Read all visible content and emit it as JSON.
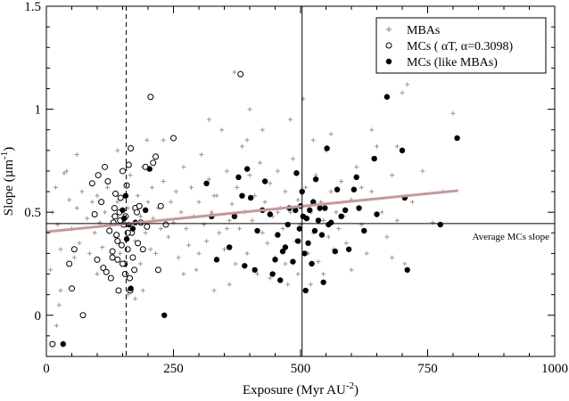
{
  "chart_data": {
    "type": "scatter",
    "xlabel": "Exposure (Myr AU",
    "xlabel_sup": "-2",
    "xlabel_end": ")",
    "ylabel": "Slope (µm",
    "ylabel_sup": "-1",
    "ylabel_end": ")",
    "xlim": [
      0,
      1000
    ],
    "ylim": [
      -0.2,
      1.5
    ],
    "xticks": [
      0,
      250,
      500,
      750,
      1000
    ],
    "xtick_labels": [
      "0",
      "250",
      "500",
      "750",
      "1000"
    ],
    "yticks": [
      0,
      0.5,
      1,
      1.5
    ],
    "ytick_labels": [
      "0",
      "0.5",
      "1",
      "1.5"
    ],
    "grid": false,
    "legend": {
      "placement": "top-right",
      "entries": [
        {
          "label": "MBAs",
          "marker": "plus",
          "color": "#b08a8a"
        },
        {
          "label": "MCs ( αT, α=0.3098)",
          "marker": "open-circle",
          "color": "#000000"
        },
        {
          "label": "MCs (like MBAs)",
          "marker": "filled-circle",
          "color": "#000000"
        }
      ]
    },
    "reference_lines": {
      "vertical_dashed_x": 157,
      "vertical_solid_x": 503,
      "horizontal_y": 0.445,
      "horizontal_label": "Average MCs slope",
      "trend_line": {
        "from": [
          0,
          0.405
        ],
        "to": [
          810,
          0.605
        ],
        "color": "#c49a9a"
      }
    },
    "series": [
      {
        "name": "MBAs",
        "marker": "plus",
        "color": "#b08a8a",
        "points": [
          [
            12,
            0.5
          ],
          [
            18,
            0.62
          ],
          [
            22,
            0.44
          ],
          [
            28,
            0.32
          ],
          [
            35,
            0.69
          ],
          [
            40,
            0.7
          ],
          [
            45,
            0.56
          ],
          [
            50,
            0.42
          ],
          [
            55,
            0.28
          ],
          [
            60,
            0.52
          ],
          [
            65,
            0.35
          ],
          [
            70,
            0.6
          ],
          [
            80,
            0.47
          ],
          [
            85,
            0.3
          ],
          [
            90,
            0.55
          ],
          [
            95,
            0.4
          ],
          [
            100,
            0.58
          ],
          [
            105,
            0.45
          ],
          [
            110,
            0.33
          ],
          [
            115,
            0.5
          ],
          [
            120,
            0.62
          ],
          [
            125,
            0.42
          ],
          [
            130,
            0.48
          ],
          [
            135,
            0.38
          ],
          [
            140,
            0.55
          ],
          [
            145,
            0.3
          ],
          [
            150,
            0.46
          ],
          [
            160,
            0.52
          ],
          [
            165,
            0.68
          ],
          [
            170,
            0.44
          ],
          [
            175,
            0.36
          ],
          [
            180,
            0.58
          ],
          [
            185,
            0.48
          ],
          [
            190,
            0.72
          ],
          [
            195,
            0.4
          ],
          [
            198,
            0.85
          ],
          [
            200,
            0.55
          ],
          [
            205,
            0.32
          ],
          [
            208,
            0.62
          ],
          [
            210,
            0.47
          ],
          [
            215,
            0.3
          ],
          [
            220,
            0.52
          ],
          [
            225,
            0.42
          ],
          [
            230,
            0.65
          ],
          [
            240,
            0.38
          ],
          [
            245,
            0.55
          ],
          [
            250,
            0.45
          ],
          [
            255,
            0.6
          ],
          [
            260,
            0.28
          ],
          [
            265,
            0.5
          ],
          [
            270,
            0.72
          ],
          [
            275,
            0.42
          ],
          [
            280,
            0.34
          ],
          [
            285,
            0.62
          ],
          [
            290,
            0.48
          ],
          [
            295,
            0.22
          ],
          [
            300,
            0.55
          ],
          [
            305,
            0.78
          ],
          [
            310,
            0.44
          ],
          [
            315,
            0.36
          ],
          [
            320,
            0.66
          ],
          [
            325,
            0.5
          ],
          [
            330,
            0.12
          ],
          [
            335,
            0.58
          ],
          [
            340,
            0.4
          ],
          [
            345,
            0.9
          ],
          [
            350,
            0.32
          ],
          [
            355,
            0.7
          ],
          [
            360,
            0.46
          ],
          [
            365,
            0.54
          ],
          [
            370,
            1.18
          ],
          [
            372,
            0.25
          ],
          [
            375,
            0.62
          ],
          [
            380,
            0.42
          ],
          [
            385,
            0.82
          ],
          [
            390,
            0.5
          ],
          [
            395,
            0.3
          ],
          [
            400,
            0.68
          ],
          [
            405,
            0.46
          ],
          [
            410,
            0.58
          ],
          [
            415,
            0.2
          ],
          [
            420,
            0.74
          ],
          [
            425,
            0.4
          ],
          [
            430,
            0.55
          ],
          [
            435,
            0.35
          ],
          [
            440,
            0.64
          ],
          [
            445,
            0.48
          ],
          [
            450,
            0.28
          ],
          [
            455,
            0.7
          ],
          [
            460,
            0.52
          ],
          [
            465,
            0.42
          ],
          [
            470,
            0.6
          ],
          [
            475,
            0.15
          ],
          [
            480,
            0.5
          ],
          [
            485,
            0.76
          ],
          [
            490,
            0.36
          ],
          [
            495,
            0.56
          ],
          [
            500,
            0.44
          ],
          [
            505,
            1.05
          ],
          [
            510,
            0.62
          ],
          [
            515,
            0.3
          ],
          [
            520,
            0.5
          ],
          [
            525,
            0.4
          ],
          [
            530,
            0.68
          ],
          [
            535,
            0.26
          ],
          [
            540,
            0.55
          ],
          [
            545,
            0.46
          ],
          [
            550,
            0.8
          ],
          [
            555,
            0.38
          ],
          [
            560,
            0.6
          ],
          [
            565,
            0.32
          ],
          [
            570,
            0.5
          ],
          [
            575,
            0.42
          ],
          [
            580,
            0.65
          ],
          [
            590,
            0.35
          ],
          [
            600,
            0.56
          ],
          [
            610,
            0.72
          ],
          [
            620,
            0.44
          ],
          [
            630,
            0.3
          ],
          [
            640,
            0.6
          ],
          [
            650,
            0.82
          ],
          [
            660,
            0.5
          ],
          [
            670,
            0.38
          ],
          [
            680,
            0.68
          ],
          [
            690,
            0.46
          ],
          [
            700,
            1.08
          ],
          [
            705,
            0.25
          ],
          [
            710,
            1.12
          ],
          [
            720,
            0.55
          ],
          [
            740,
            0.7
          ],
          [
            760,
            0.45
          ],
          [
            780,
            0.6
          ],
          [
            800,
            0.98
          ],
          [
            60,
            0.78
          ],
          [
            100,
            0.2
          ],
          [
            140,
            0.8
          ],
          [
            185,
            0.25
          ],
          [
            230,
            0.85
          ],
          [
            270,
            0.2
          ],
          [
            320,
            0.95
          ],
          [
            360,
            0.15
          ],
          [
            400,
            1.0
          ],
          [
            440,
            0.18
          ],
          [
            480,
            0.95
          ],
          [
            520,
            0.15
          ],
          [
            560,
            0.88
          ],
          [
            600,
            0.22
          ],
          [
            640,
            0.9
          ],
          [
            680,
            0.28
          ],
          [
            8,
            0.22
          ],
          [
            25,
            0.05
          ],
          [
            20,
            -0.05
          ],
          [
            28,
            0.12
          ],
          [
            160,
            0.1
          ],
          [
            175,
            0.08
          ],
          [
            190,
            0.12
          ],
          [
            300,
            0.3
          ],
          [
            330,
            0.58
          ],
          [
            355,
            0.42
          ],
          [
            395,
            0.85
          ],
          [
            425,
            0.9
          ],
          [
            455,
            0.5
          ],
          [
            470,
            0.25
          ],
          [
            495,
            0.2
          ],
          [
            525,
            0.85
          ],
          [
            545,
            0.2
          ],
          [
            585,
            0.48
          ],
          [
            620,
            0.62
          ],
          [
            690,
            0.82
          ]
        ]
      },
      {
        "name": "MCs ( αT, α=0.3098)",
        "marker": "open-circle",
        "color": "#000000",
        "points": [
          [
            12,
            -0.14
          ],
          [
            45,
            0.25
          ],
          [
            50,
            0.13
          ],
          [
            55,
            0.32
          ],
          [
            72,
            0.0
          ],
          [
            90,
            0.64
          ],
          [
            95,
            0.49
          ],
          [
            100,
            0.27
          ],
          [
            102,
            0.68
          ],
          [
            108,
            0.55
          ],
          [
            112,
            0.23
          ],
          [
            115,
            0.72
          ],
          [
            118,
            0.21
          ],
          [
            121,
            0.65
          ],
          [
            124,
            0.41
          ],
          [
            127,
            0.18
          ],
          [
            130,
            0.31
          ],
          [
            132,
            0.45
          ],
          [
            134,
            0.52
          ],
          [
            136,
            0.59
          ],
          [
            138,
            0.39
          ],
          [
            140,
            0.27
          ],
          [
            142,
            0.12
          ],
          [
            144,
            0.5
          ],
          [
            146,
            0.57
          ],
          [
            148,
            0.34
          ],
          [
            150,
            0.7
          ],
          [
            152,
            0.44
          ],
          [
            154,
            0.25
          ],
          [
            156,
            0.48
          ],
          [
            158,
            0.63
          ],
          [
            160,
            0.32
          ],
          [
            162,
            0.73
          ],
          [
            164,
            0.18
          ],
          [
            166,
            0.81
          ],
          [
            168,
            0.4
          ],
          [
            170,
            0.28
          ],
          [
            173,
            0.22
          ],
          [
            175,
            0.52
          ],
          [
            178,
            0.5
          ],
          [
            180,
            0.35
          ],
          [
            183,
            0.53
          ],
          [
            186,
            0.45
          ],
          [
            190,
            0.32
          ],
          [
            195,
            0.72
          ],
          [
            198,
            0.43
          ],
          [
            205,
            1.06
          ],
          [
            210,
            0.74
          ],
          [
            215,
            0.77
          ],
          [
            220,
            0.22
          ],
          [
            225,
            0.53
          ],
          [
            235,
            0.44
          ],
          [
            250,
            0.86
          ],
          [
            382,
            1.17
          ],
          [
            130,
            0.28
          ],
          [
            135,
            0.48
          ],
          [
            140,
            0.36
          ],
          [
            145,
            0.46
          ],
          [
            150,
            0.25
          ],
          [
            155,
            0.2
          ],
          [
            160,
            0.4
          ],
          [
            165,
            0.12
          ]
        ]
      },
      {
        "name": "MCs (like MBAs)",
        "marker": "filled-circle",
        "color": "#000000",
        "points": [
          [
            33,
            -0.14
          ],
          [
            150,
            0.51
          ],
          [
            153,
            0.47
          ],
          [
            156,
            0.58
          ],
          [
            158,
            0.37
          ],
          [
            162,
            0.44
          ],
          [
            166,
            0.13
          ],
          [
            170,
            0.42
          ],
          [
            175,
            0.45
          ],
          [
            195,
            0.51
          ],
          [
            203,
            0.71
          ],
          [
            232,
            0.0
          ],
          [
            315,
            0.64
          ],
          [
            325,
            0.48
          ],
          [
            335,
            0.27
          ],
          [
            360,
            0.33
          ],
          [
            370,
            0.48
          ],
          [
            378,
            0.67
          ],
          [
            385,
            0.58
          ],
          [
            390,
            0.24
          ],
          [
            395,
            0.71
          ],
          [
            402,
            0.57
          ],
          [
            410,
            0.22
          ],
          [
            415,
            0.41
          ],
          [
            425,
            0.51
          ],
          [
            430,
            0.65
          ],
          [
            440,
            0.49
          ],
          [
            445,
            0.2
          ],
          [
            450,
            0.27
          ],
          [
            455,
            0.39
          ],
          [
            460,
            0.17
          ],
          [
            465,
            0.31
          ],
          [
            470,
            0.33
          ],
          [
            475,
            0.44
          ],
          [
            478,
            0.52
          ],
          [
            485,
            0.26
          ],
          [
            490,
            0.51
          ],
          [
            492,
            0.69
          ],
          [
            495,
            0.36
          ],
          [
            498,
            0.42
          ],
          [
            500,
            0.53
          ],
          [
            503,
            0.6
          ],
          [
            505,
            0.48
          ],
          [
            508,
            0.3
          ],
          [
            510,
            0.12
          ],
          [
            512,
            0.47
          ],
          [
            515,
            0.35
          ],
          [
            518,
            0.51
          ],
          [
            522,
            0.25
          ],
          [
            525,
            0.55
          ],
          [
            528,
            0.41
          ],
          [
            530,
            0.66
          ],
          [
            535,
            0.46
          ],
          [
            538,
            0.52
          ],
          [
            542,
            0.39
          ],
          [
            545,
            0.16
          ],
          [
            548,
            0.52
          ],
          [
            552,
            0.81
          ],
          [
            555,
            0.44
          ],
          [
            560,
            0.45
          ],
          [
            568,
            0.31
          ],
          [
            572,
            0.61
          ],
          [
            580,
            0.48
          ],
          [
            588,
            0.51
          ],
          [
            595,
            0.32
          ],
          [
            605,
            0.61
          ],
          [
            610,
            0.67
          ],
          [
            615,
            0.52
          ],
          [
            625,
            0.41
          ],
          [
            645,
            0.76
          ],
          [
            650,
            0.49
          ],
          [
            670,
            1.06
          ],
          [
            705,
            0.57
          ],
          [
            710,
            0.22
          ],
          [
            775,
            0.44
          ],
          [
            808,
            0.86
          ],
          [
            700,
            0.8
          ]
        ]
      }
    ]
  }
}
